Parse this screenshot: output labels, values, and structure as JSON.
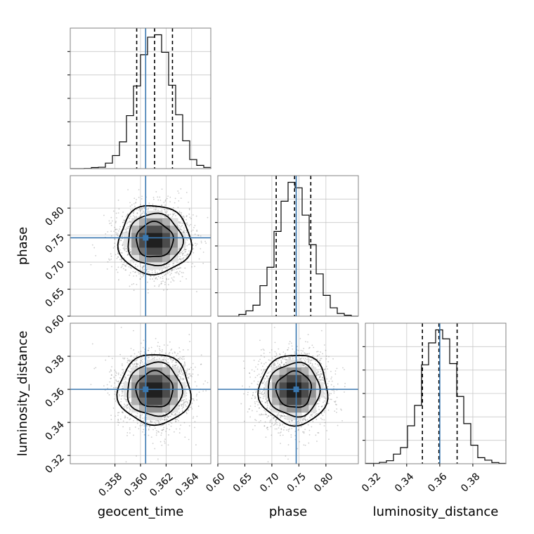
{
  "chart_data": {
    "type": "corner",
    "parameters": [
      {
        "name": "geocent_time",
        "label": "geocent_time",
        "range": [
          0.3545,
          0.3655
        ],
        "ticks": [
          0.358,
          0.36,
          0.362,
          0.364
        ],
        "tick_labels": [
          "0.358",
          "0.360",
          "0.362",
          "0.364"
        ],
        "truth": 0.3604,
        "quantiles": [
          0.3597,
          0.3611,
          0.3625
        ],
        "mean": 0.3611,
        "sd": 0.00138
      },
      {
        "name": "phase",
        "label": "phase",
        "range": [
          0.6,
          0.86
        ],
        "ticks": [
          0.6,
          0.65,
          0.7,
          0.75,
          0.8
        ],
        "tick_labels": [
          "0.60",
          "0.65",
          "0.70",
          "0.75",
          "0.80"
        ],
        "truth": 0.745,
        "quantiles": [
          0.708,
          0.742,
          0.772
        ],
        "mean": 0.741,
        "sd": 0.031
      },
      {
        "name": "luminosity_distance",
        "label": "luminosity_distance",
        "range": [
          0.315,
          0.4
        ],
        "ticks": [
          0.32,
          0.34,
          0.36,
          0.38
        ],
        "tick_labels": [
          "0.32",
          "0.34",
          "0.36",
          "0.38"
        ],
        "truth": 0.36,
        "quantiles": [
          0.3495,
          0.3595,
          0.3705
        ],
        "mean": 0.3598,
        "sd": 0.0104
      }
    ],
    "grid": true
  }
}
